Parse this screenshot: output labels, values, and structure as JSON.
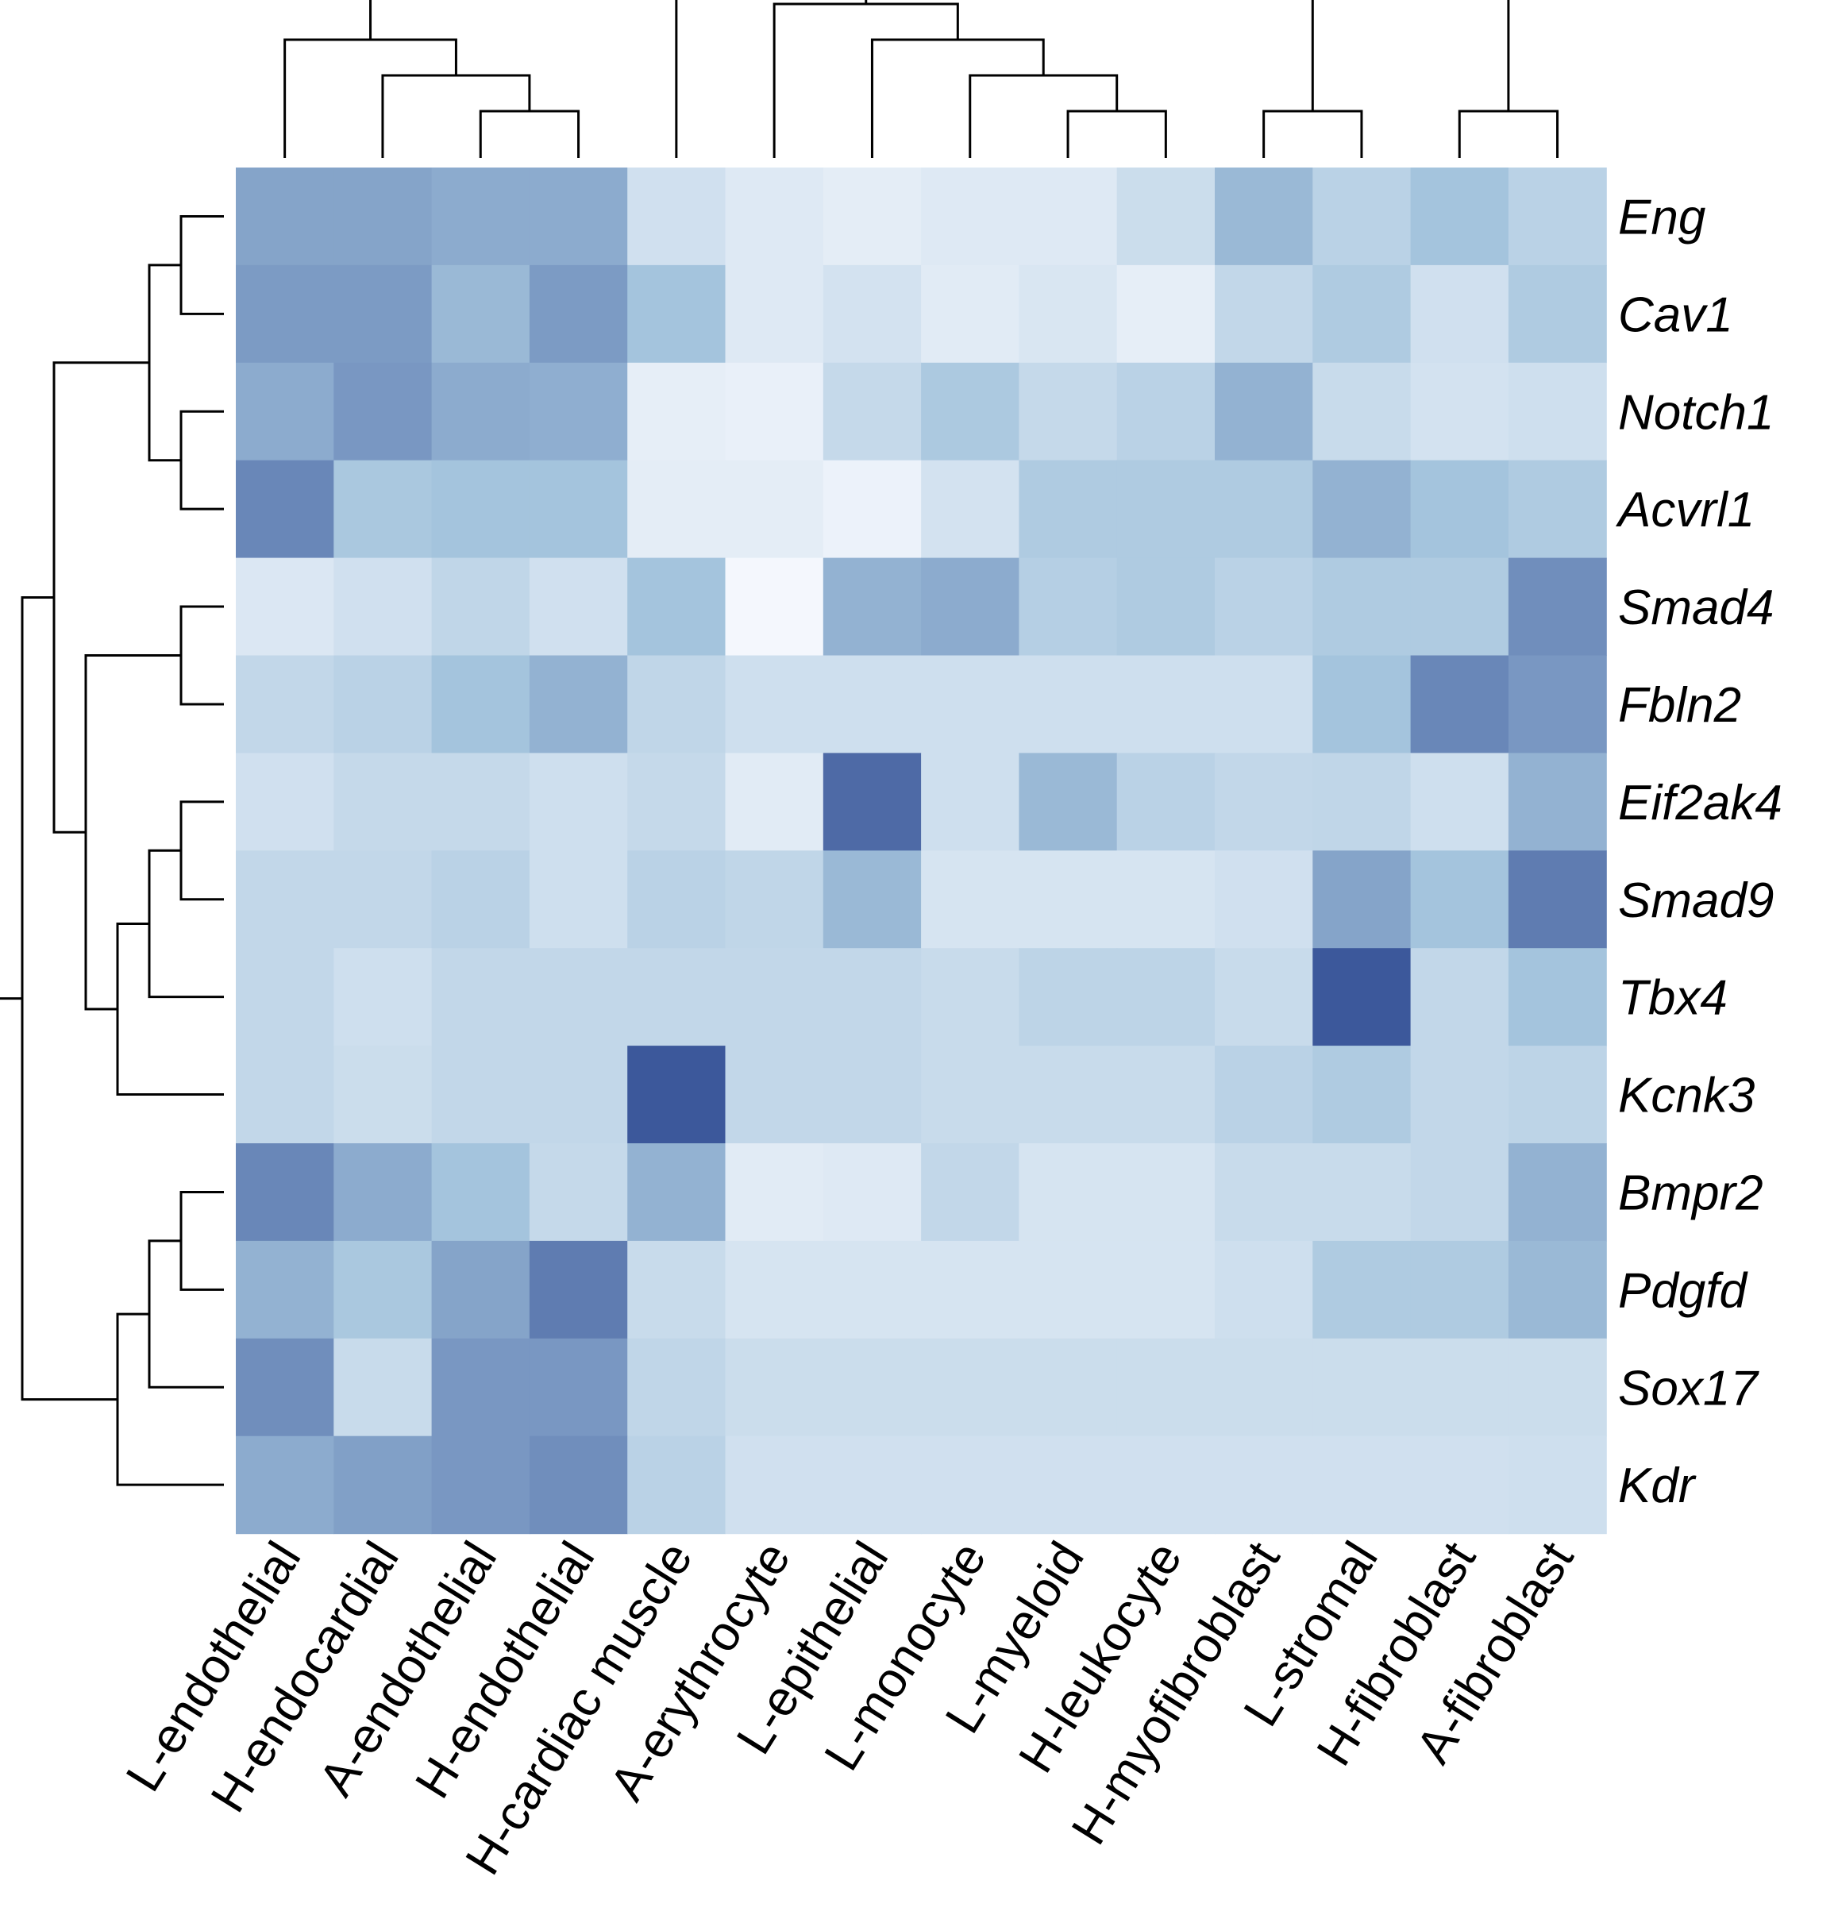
{
  "chart_data": {
    "type": "heatmap",
    "title": "",
    "xlabel": "",
    "ylabel": "",
    "rows": [
      "Eng",
      "Cav1",
      "Notch1",
      "Acvrl1",
      "Smad4",
      "Fbln2",
      "Eif2ak4",
      "Smad9",
      "Tbx4",
      "Kcnk3",
      "Bmpr2",
      "Pdgfd",
      "Sox17",
      "Kdr"
    ],
    "columns": [
      "L-endothelial",
      "H-endocardial",
      "A-endothelial",
      "H-endothelial",
      "H-cardiac muscle",
      "A-erythrocyte",
      "L-epithelial",
      "L-monocyte",
      "L-myeloid",
      "H-leukocyte",
      "H-myofibroblast",
      "L-stromal",
      "H-fibroblast",
      "A-fibroblast"
    ],
    "value_range": [
      0,
      1
    ],
    "color_scale": {
      "low": "#f7f9fe",
      "mid": "#a4c4dd",
      "high": "#2b4690"
    },
    "values": [
      [
        0.48,
        0.48,
        0.44,
        0.44,
        0.14,
        0.09,
        0.07,
        0.09,
        0.09,
        0.16,
        0.36,
        0.22,
        0.3,
        0.22
      ],
      [
        0.53,
        0.53,
        0.36,
        0.53,
        0.3,
        0.09,
        0.13,
        0.08,
        0.11,
        0.06,
        0.19,
        0.26,
        0.14,
        0.26
      ],
      [
        0.44,
        0.55,
        0.44,
        0.42,
        0.06,
        0.05,
        0.18,
        0.27,
        0.18,
        0.22,
        0.4,
        0.17,
        0.13,
        0.15
      ],
      [
        0.64,
        0.28,
        0.3,
        0.3,
        0.07,
        0.07,
        0.04,
        0.13,
        0.26,
        0.26,
        0.26,
        0.4,
        0.3,
        0.26
      ],
      [
        0.1,
        0.14,
        0.2,
        0.14,
        0.3,
        0.01,
        0.4,
        0.44,
        0.24,
        0.26,
        0.22,
        0.26,
        0.26,
        0.6
      ],
      [
        0.19,
        0.22,
        0.3,
        0.4,
        0.2,
        0.15,
        0.15,
        0.15,
        0.15,
        0.15,
        0.15,
        0.3,
        0.64,
        0.55
      ],
      [
        0.14,
        0.18,
        0.18,
        0.15,
        0.18,
        0.08,
        0.8,
        0.15,
        0.36,
        0.22,
        0.19,
        0.2,
        0.15,
        0.4
      ],
      [
        0.19,
        0.19,
        0.22,
        0.15,
        0.22,
        0.2,
        0.36,
        0.12,
        0.12,
        0.12,
        0.14,
        0.48,
        0.3,
        0.7
      ],
      [
        0.19,
        0.15,
        0.19,
        0.19,
        0.19,
        0.19,
        0.19,
        0.17,
        0.21,
        0.21,
        0.17,
        0.9,
        0.19,
        0.3
      ],
      [
        0.19,
        0.16,
        0.19,
        0.19,
        0.9,
        0.19,
        0.19,
        0.17,
        0.17,
        0.17,
        0.22,
        0.26,
        0.19,
        0.21
      ],
      [
        0.64,
        0.44,
        0.3,
        0.18,
        0.4,
        0.08,
        0.09,
        0.19,
        0.12,
        0.12,
        0.17,
        0.17,
        0.19,
        0.4
      ],
      [
        0.4,
        0.28,
        0.48,
        0.7,
        0.17,
        0.12,
        0.12,
        0.12,
        0.12,
        0.12,
        0.15,
        0.26,
        0.26,
        0.36
      ],
      [
        0.6,
        0.17,
        0.55,
        0.55,
        0.2,
        0.16,
        0.16,
        0.16,
        0.16,
        0.16,
        0.16,
        0.16,
        0.16,
        0.16
      ],
      [
        0.44,
        0.5,
        0.55,
        0.6,
        0.22,
        0.14,
        0.14,
        0.14,
        0.14,
        0.14,
        0.14,
        0.14,
        0.14,
        0.15
      ]
    ],
    "row_dendrogram": [
      [
        0,
        1
      ],
      [
        2,
        3
      ],
      [
        14,
        15
      ],
      [
        4,
        5
      ],
      [
        6,
        7
      ],
      [
        18,
        8
      ],
      [
        19,
        9
      ],
      [
        17,
        20
      ],
      [
        16,
        21
      ],
      [
        10,
        11
      ],
      [
        23,
        12
      ],
      [
        24,
        13
      ],
      [
        22,
        25
      ]
    ],
    "col_dendrogram": [
      [
        2,
        3
      ],
      [
        1,
        14
      ],
      [
        0,
        15
      ],
      [
        8,
        9
      ],
      [
        7,
        17
      ],
      [
        6,
        18
      ],
      [
        5,
        19
      ],
      [
        10,
        11
      ],
      [
        12,
        13
      ]
    ],
    "legend": "none",
    "grid": false
  }
}
